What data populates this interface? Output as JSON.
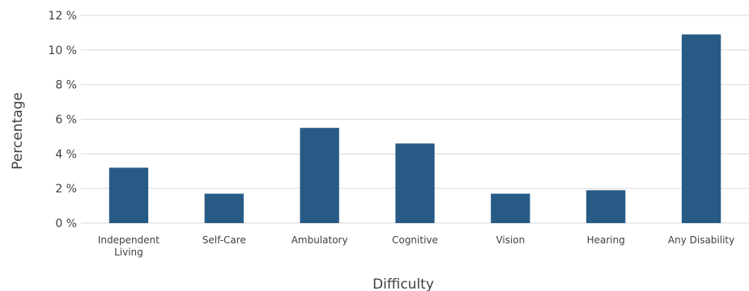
{
  "chart_data": {
    "type": "bar",
    "title": "",
    "xlabel": "Difficulty",
    "ylabel": "Percentage",
    "categories": [
      "Independent Living",
      "Self-Care",
      "Ambulatory",
      "Cognitive",
      "Vision",
      "Hearing",
      "Any Disability"
    ],
    "category_lines": [
      [
        "Independent",
        "Living"
      ],
      [
        "Self-Care"
      ],
      [
        "Ambulatory"
      ],
      [
        "Cognitive"
      ],
      [
        "Vision"
      ],
      [
        "Hearing"
      ],
      [
        "Any Disability"
      ]
    ],
    "values": [
      3.2,
      1.7,
      5.5,
      4.6,
      1.7,
      1.9,
      10.9
    ],
    "ylim": [
      0,
      12
    ],
    "yticks": [
      0,
      2,
      4,
      6,
      8,
      10,
      12
    ],
    "ytick_labels": [
      "0 %",
      "2 %",
      "4 %",
      "6 %",
      "8 %",
      "10 %",
      "12 %"
    ],
    "grid": true,
    "legend": "none",
    "bar_color": "#275b86"
  }
}
